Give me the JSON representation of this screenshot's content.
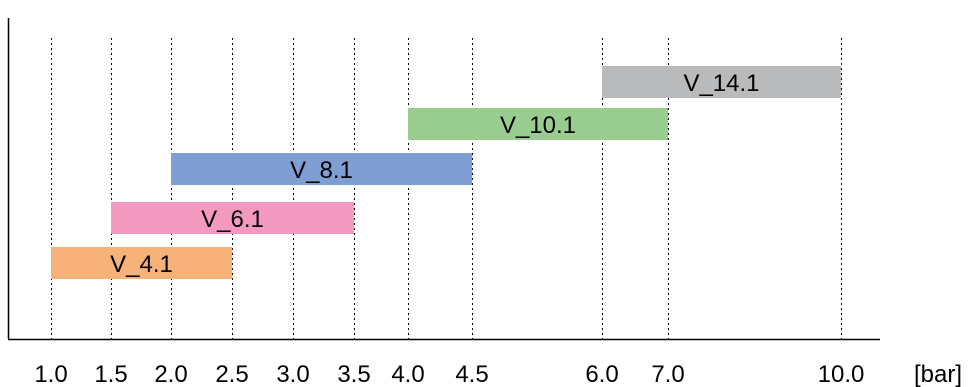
{
  "chart_data": {
    "type": "bar",
    "orientation": "horizontal-range",
    "title": "",
    "xlabel": "",
    "ylabel": "",
    "unit": "[bar]",
    "xlim": [
      0.85,
      10.4
    ],
    "grid": "vertical-dashed",
    "legend": "none",
    "ticks": [
      {
        "value": 1.0,
        "label": "1.0"
      },
      {
        "value": 1.5,
        "label": "1.5"
      },
      {
        "value": 2.0,
        "label": "2.0"
      },
      {
        "value": 2.5,
        "label": "2.5"
      },
      {
        "value": 3.0,
        "label": "3.0"
      },
      {
        "value": 3.5,
        "label": "3.5"
      },
      {
        "value": 4.0,
        "label": "4.0"
      },
      {
        "value": 4.5,
        "label": "4.5"
      },
      {
        "value": 6.0,
        "label": "6.0"
      },
      {
        "value": 7.0,
        "label": "7.0"
      },
      {
        "value": 10.0,
        "label": "10.0"
      }
    ],
    "series": [
      {
        "label": "V_4.1",
        "start": 1.0,
        "end": 2.5,
        "color": "#f7b27a"
      },
      {
        "label": "V_6.1",
        "start": 1.5,
        "end": 3.5,
        "color": "#f49ac1"
      },
      {
        "label": "V_8.1",
        "start": 2.0,
        "end": 4.5,
        "color": "#7f9fd4"
      },
      {
        "label": "V_10.1",
        "start": 4.0,
        "end": 7.0,
        "color": "#99cc8f"
      },
      {
        "label": "V_14.1",
        "start": 6.0,
        "end": 10.0,
        "color": "#b9babb"
      }
    ]
  }
}
